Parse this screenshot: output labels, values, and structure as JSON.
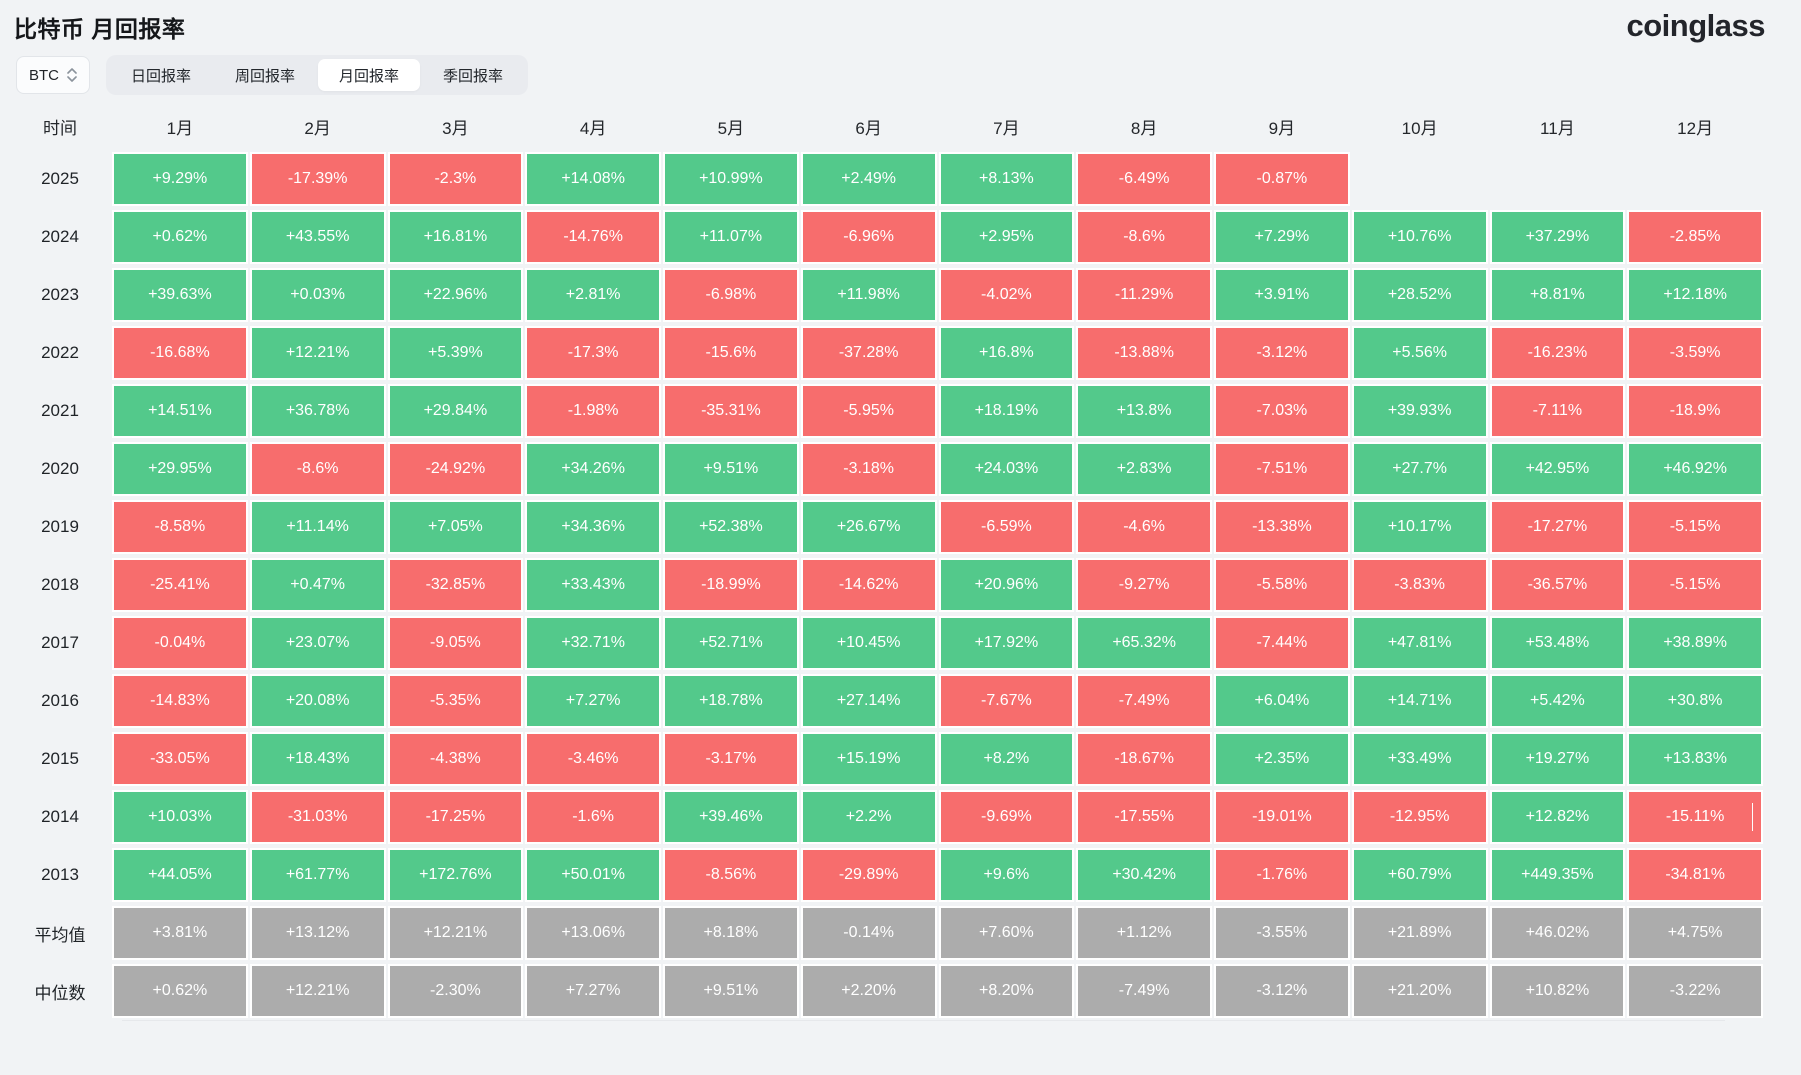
{
  "page": {
    "title": "比特币 月回报率",
    "brand": "coinglass"
  },
  "controls": {
    "symbol_select": {
      "value": "BTC"
    },
    "tabs": [
      {
        "label": "日回报率",
        "active": false
      },
      {
        "label": "周回报率",
        "active": false
      },
      {
        "label": "月回报率",
        "active": true
      },
      {
        "label": "季回报率",
        "active": false
      }
    ]
  },
  "colors": {
    "positive": "#53C98B",
    "negative": "#F76D6D",
    "summary": "#ACACAC"
  },
  "table": {
    "time_header": "时间",
    "months": [
      "1月",
      "2月",
      "3月",
      "4月",
      "5月",
      "6月",
      "7月",
      "8月",
      "9月",
      "10月",
      "11月",
      "12月"
    ],
    "rows": [
      {
        "label": "2025",
        "type": "year",
        "values": [
          "+9.29%",
          "-17.39%",
          "-2.3%",
          "+14.08%",
          "+10.99%",
          "+2.49%",
          "+8.13%",
          "-6.49%",
          "-0.87%",
          "",
          "",
          ""
        ]
      },
      {
        "label": "2024",
        "type": "year",
        "values": [
          "+0.62%",
          "+43.55%",
          "+16.81%",
          "-14.76%",
          "+11.07%",
          "-6.96%",
          "+2.95%",
          "-8.6%",
          "+7.29%",
          "+10.76%",
          "+37.29%",
          "-2.85%"
        ]
      },
      {
        "label": "2023",
        "type": "year",
        "values": [
          "+39.63%",
          "+0.03%",
          "+22.96%",
          "+2.81%",
          "-6.98%",
          "+11.98%",
          "-4.02%",
          "-11.29%",
          "+3.91%",
          "+28.52%",
          "+8.81%",
          "+12.18%"
        ]
      },
      {
        "label": "2022",
        "type": "year",
        "values": [
          "-16.68%",
          "+12.21%",
          "+5.39%",
          "-17.3%",
          "-15.6%",
          "-37.28%",
          "+16.8%",
          "-13.88%",
          "-3.12%",
          "+5.56%",
          "-16.23%",
          "-3.59%"
        ]
      },
      {
        "label": "2021",
        "type": "year",
        "values": [
          "+14.51%",
          "+36.78%",
          "+29.84%",
          "-1.98%",
          "-35.31%",
          "-5.95%",
          "+18.19%",
          "+13.8%",
          "-7.03%",
          "+39.93%",
          "-7.11%",
          "-18.9%"
        ]
      },
      {
        "label": "2020",
        "type": "year",
        "values": [
          "+29.95%",
          "-8.6%",
          "-24.92%",
          "+34.26%",
          "+9.51%",
          "-3.18%",
          "+24.03%",
          "+2.83%",
          "-7.51%",
          "+27.7%",
          "+42.95%",
          "+46.92%"
        ]
      },
      {
        "label": "2019",
        "type": "year",
        "values": [
          "-8.58%",
          "+11.14%",
          "+7.05%",
          "+34.36%",
          "+52.38%",
          "+26.67%",
          "-6.59%",
          "-4.6%",
          "-13.38%",
          "+10.17%",
          "-17.27%",
          "-5.15%"
        ]
      },
      {
        "label": "2018",
        "type": "year",
        "values": [
          "-25.41%",
          "+0.47%",
          "-32.85%",
          "+33.43%",
          "-18.99%",
          "-14.62%",
          "+20.96%",
          "-9.27%",
          "-5.58%",
          "-3.83%",
          "-36.57%",
          "-5.15%"
        ]
      },
      {
        "label": "2017",
        "type": "year",
        "values": [
          "-0.04%",
          "+23.07%",
          "-9.05%",
          "+32.71%",
          "+52.71%",
          "+10.45%",
          "+17.92%",
          "+65.32%",
          "-7.44%",
          "+47.81%",
          "+53.48%",
          "+38.89%"
        ]
      },
      {
        "label": "2016",
        "type": "year",
        "values": [
          "-14.83%",
          "+20.08%",
          "-5.35%",
          "+7.27%",
          "+18.78%",
          "+27.14%",
          "-7.67%",
          "-7.49%",
          "+6.04%",
          "+14.71%",
          "+5.42%",
          "+30.8%"
        ]
      },
      {
        "label": "2015",
        "type": "year",
        "values": [
          "-33.05%",
          "+18.43%",
          "-4.38%",
          "-3.46%",
          "-3.17%",
          "+15.19%",
          "+8.2%",
          "-18.67%",
          "+2.35%",
          "+33.49%",
          "+19.27%",
          "+13.83%"
        ]
      },
      {
        "label": "2014",
        "type": "year",
        "values": [
          "+10.03%",
          "-31.03%",
          "-17.25%",
          "-1.6%",
          "+39.46%",
          "+2.2%",
          "-9.69%",
          "-17.55%",
          "-19.01%",
          "-12.95%",
          "+12.82%",
          "-15.11%"
        ]
      },
      {
        "label": "2013",
        "type": "year",
        "values": [
          "+44.05%",
          "+61.77%",
          "+172.76%",
          "+50.01%",
          "-8.56%",
          "-29.89%",
          "+9.6%",
          "+30.42%",
          "-1.76%",
          "+60.79%",
          "+449.35%",
          "-34.81%"
        ]
      },
      {
        "label": "平均值",
        "type": "summary",
        "values": [
          "+3.81%",
          "+13.12%",
          "+12.21%",
          "+13.06%",
          "+8.18%",
          "-0.14%",
          "+7.60%",
          "+1.12%",
          "-3.55%",
          "+21.89%",
          "+46.02%",
          "+4.75%"
        ]
      },
      {
        "label": "中位数",
        "type": "summary",
        "values": [
          "+0.62%",
          "+12.21%",
          "-2.30%",
          "+7.27%",
          "+9.51%",
          "+2.20%",
          "+8.20%",
          "-7.49%",
          "-3.12%",
          "+21.20%",
          "+10.82%",
          "-3.22%"
        ]
      }
    ]
  },
  "artifacts": {
    "text_cursor": {
      "row_label": "2014",
      "col_index": 11
    }
  }
}
